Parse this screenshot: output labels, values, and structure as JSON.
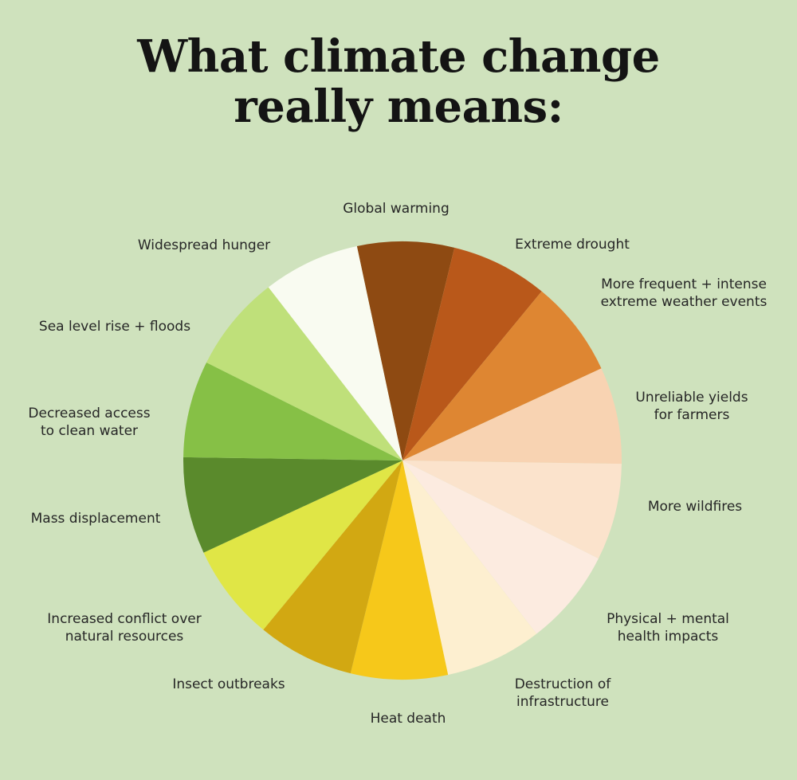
{
  "title": {
    "line1": "What climate change",
    "line2": "really means:"
  },
  "chart_data": {
    "type": "pie",
    "title": "What climate change really means:",
    "slices": [
      {
        "label": [
          "Global warming"
        ],
        "value": 1,
        "color": "#8e4a12"
      },
      {
        "label": [
          "Extreme drought"
        ],
        "value": 1,
        "color": "#b9581a"
      },
      {
        "label": [
          "More frequent + intense",
          "extreme weather events"
        ],
        "value": 1,
        "color": "#de8632"
      },
      {
        "label": [
          "Unreliable yields",
          "for farmers"
        ],
        "value": 1,
        "color": "#f8d3b2"
      },
      {
        "label": [
          "More wildfires"
        ],
        "value": 1,
        "color": "#fbe3cc"
      },
      {
        "label": [
          "Physical + mental",
          "health impacts"
        ],
        "value": 1,
        "color": "#fcebe0"
      },
      {
        "label": [
          "Destruction of",
          "infrastructure"
        ],
        "value": 1,
        "color": "#fdefd0"
      },
      {
        "label": [
          "Heat death"
        ],
        "value": 1,
        "color": "#f6c81a"
      },
      {
        "label": [
          "Insect outbreaks"
        ],
        "value": 1,
        "color": "#d2a812"
      },
      {
        "label": [
          "Increased conflict over",
          "natural resources"
        ],
        "value": 1,
        "color": "#e0e646"
      },
      {
        "label": [
          "Mass displacement"
        ],
        "value": 1,
        "color": "#5a8a2c"
      },
      {
        "label": [
          "Decreased access",
          "to clean water"
        ],
        "value": 1,
        "color": "#86c046"
      },
      {
        "label": [
          "Sea level rise + floods"
        ],
        "value": 1,
        "color": "#bfe07a"
      },
      {
        "label": [
          "Widespread hunger"
        ],
        "value": 1,
        "color": "#f9fbf1"
      }
    ]
  }
}
